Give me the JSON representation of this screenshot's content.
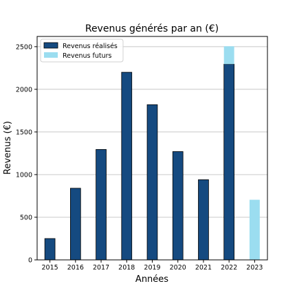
{
  "chart_data": {
    "type": "bar",
    "title": "Revenus générés par an (€)",
    "xlabel": "Années",
    "ylabel": "Revenus (€)",
    "categories": [
      "2015",
      "2016",
      "2017",
      "2018",
      "2019",
      "2020",
      "2021",
      "2022",
      "2023"
    ],
    "ylim": [
      0,
      2620
    ],
    "yticks": [
      0,
      500,
      1000,
      1500,
      2000,
      2500
    ],
    "grid": "horizontal",
    "legend_position": "top-left",
    "stacked": true,
    "series": [
      {
        "name": "Revenus réalisés",
        "color": "#154a80",
        "values": [
          250,
          840,
          1295,
          2200,
          1820,
          1270,
          940,
          2295,
          0
        ]
      },
      {
        "name": "Revenus futurs",
        "color": "#9bddf0",
        "values": [
          0,
          0,
          0,
          0,
          0,
          0,
          0,
          210,
          705
        ]
      }
    ]
  }
}
